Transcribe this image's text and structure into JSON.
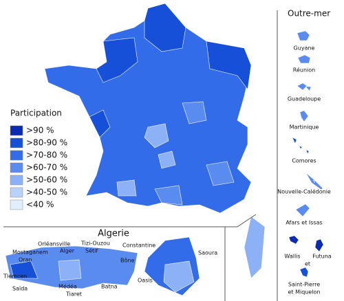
{
  "legend": {
    "title": "Participation",
    "items": [
      {
        "label": ">90 %",
        "color": "#0b2bb0"
      },
      {
        "label": ">80-90 %",
        "color": "#1650d8"
      },
      {
        "label": ">70-80 %",
        "color": "#336ce8"
      },
      {
        "label": ">60-70 %",
        "color": "#5a8cf0"
      },
      {
        "label": ">50-60 %",
        "color": "#8db1f6"
      },
      {
        "label": ">40-50 %",
        "color": "#b9d1fb"
      },
      {
        "label": "<40 %",
        "color": "#e2edfd"
      }
    ]
  },
  "outremer": {
    "title": "Outre-mer",
    "territories": [
      "Guyane",
      "Réunion",
      "Guadeloupe",
      "Martinique",
      "Comores",
      "Nouvelle-Calédonie",
      "Afars et Issas"
    ],
    "wallis": [
      "Wallis",
      "et",
      "Futuna"
    ],
    "saint_pierre": [
      "Saint-Pierre",
      "et Miquelon"
    ]
  },
  "algerie": {
    "title": "Algerie",
    "labels": [
      "Orléansville",
      "Tizi-Ouzou",
      "Mostaganem",
      "Alger",
      "Sétif",
      "Constantine",
      "Oran",
      "Bône",
      "Tlemcen",
      "Saïda",
      "Médéa",
      "Batna",
      "Tiaret",
      "Saoura",
      "Oasis"
    ]
  }
}
